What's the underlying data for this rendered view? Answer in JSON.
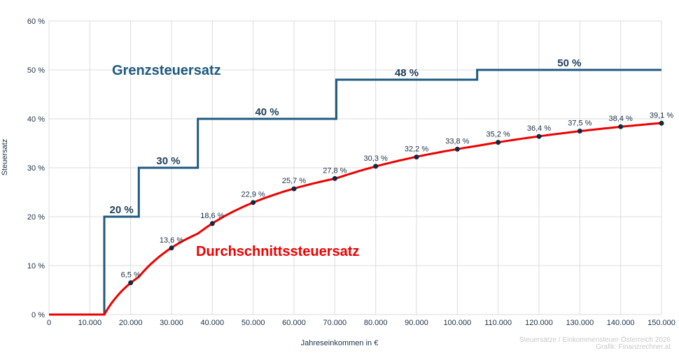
{
  "chart_data": {
    "type": "line",
    "xlabel": "Jahreseinkommen in €",
    "ylabel": "Steuersatz",
    "xlim": [
      0,
      150000
    ],
    "ylim": [
      0,
      60
    ],
    "grid": true,
    "x_ticks": [
      "0",
      "10.000",
      "20.000",
      "30.000",
      "40.000",
      "50.000",
      "60.000",
      "70.000",
      "80.000",
      "90.000",
      "100.000",
      "110.000",
      "120.000",
      "130.000",
      "140.000",
      "150.000"
    ],
    "y_ticks": [
      "0 %",
      "10 %",
      "20 %",
      "30 %",
      "40 %",
      "50 %",
      "60 %"
    ],
    "series": [
      {
        "name": "Grenzsteuersatz",
        "color": "#1f5a80",
        "brackets": [
          {
            "from": 0,
            "to": 13539,
            "rate": 0
          },
          {
            "from": 13539,
            "to": 21992,
            "rate": 20,
            "label": "20 %"
          },
          {
            "from": 21992,
            "to": 36458,
            "rate": 30,
            "label": "30 %"
          },
          {
            "from": 36458,
            "to": 70365,
            "rate": 40,
            "label": "40 %"
          },
          {
            "from": 70365,
            "to": 104859,
            "rate": 48,
            "label": "48 %"
          },
          {
            "from": 104859,
            "to": 150000,
            "rate": 50,
            "label": "50 %"
          }
        ]
      },
      {
        "name": "Durchschnittssteuersatz",
        "color": "#ee0000",
        "points": [
          {
            "x": 20000,
            "y": 6.5,
            "label": "6,5 %"
          },
          {
            "x": 30000,
            "y": 13.6,
            "label": "13,6 %"
          },
          {
            "x": 40000,
            "y": 18.6,
            "label": "18,6 %"
          },
          {
            "x": 50000,
            "y": 22.9,
            "label": "22,9 %"
          },
          {
            "x": 60000,
            "y": 25.7,
            "label": "25,7 %"
          },
          {
            "x": 70000,
            "y": 27.8,
            "label": "27,8 %"
          },
          {
            "x": 80000,
            "y": 30.3,
            "label": "30,3 %"
          },
          {
            "x": 90000,
            "y": 32.2,
            "label": "32,2 %"
          },
          {
            "x": 100000,
            "y": 33.8,
            "label": "33,8 %"
          },
          {
            "x": 110000,
            "y": 35.2,
            "label": "35,2 %"
          },
          {
            "x": 120000,
            "y": 36.4,
            "label": "36,4 %"
          },
          {
            "x": 130000,
            "y": 37.5,
            "label": "37,5 %"
          },
          {
            "x": 140000,
            "y": 38.4,
            "label": "38,4 %"
          },
          {
            "x": 150000,
            "y": 39.1,
            "label": "39,1 %"
          }
        ]
      }
    ],
    "point_color": "#0f2a40"
  },
  "footer": {
    "line1": "Steuersätze / Einkommensteuer Österreich 2026",
    "line2": "Grafik: Finanzrechner.at"
  }
}
